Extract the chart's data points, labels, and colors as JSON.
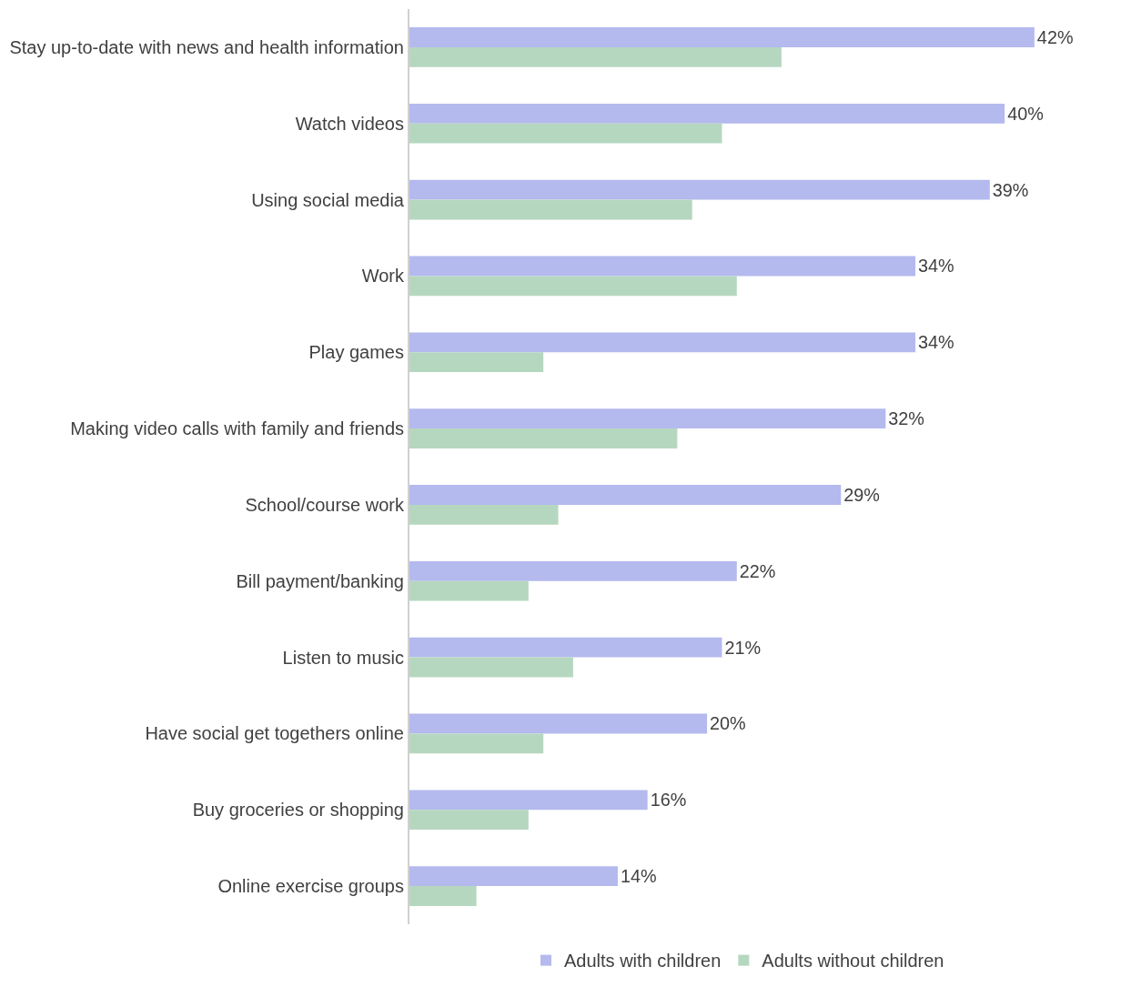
{
  "chart_data": {
    "type": "bar",
    "orientation": "horizontal",
    "categories": [
      "Stay up-to-date with news and health information",
      "Watch videos",
      "Using social media",
      "Work",
      "Play games",
      "Making video calls with family and friends",
      "School/course work",
      "Bill payment/banking",
      "Listen to music",
      "Have social get togethers online",
      "Buy groceries or shopping",
      "Online exercise groups"
    ],
    "series": [
      {
        "name": "Adults with children",
        "color": "#b4b9ee",
        "values": [
          42,
          40,
          39,
          34,
          34,
          32,
          29,
          22,
          21,
          20,
          16,
          14
        ],
        "value_labels": [
          "42%",
          "40%",
          "39%",
          "34%",
          "34%",
          "32%",
          "29%",
          "22%",
          "21%",
          "20%",
          "16%",
          "14%"
        ]
      },
      {
        "name": "Adults without children",
        "color": "#b6d7bf",
        "values": [
          25,
          21,
          19,
          22,
          9,
          18,
          10,
          8,
          11,
          9,
          8,
          4.5
        ]
      }
    ],
    "legend": "bottom",
    "tick_labels": "y"
  }
}
